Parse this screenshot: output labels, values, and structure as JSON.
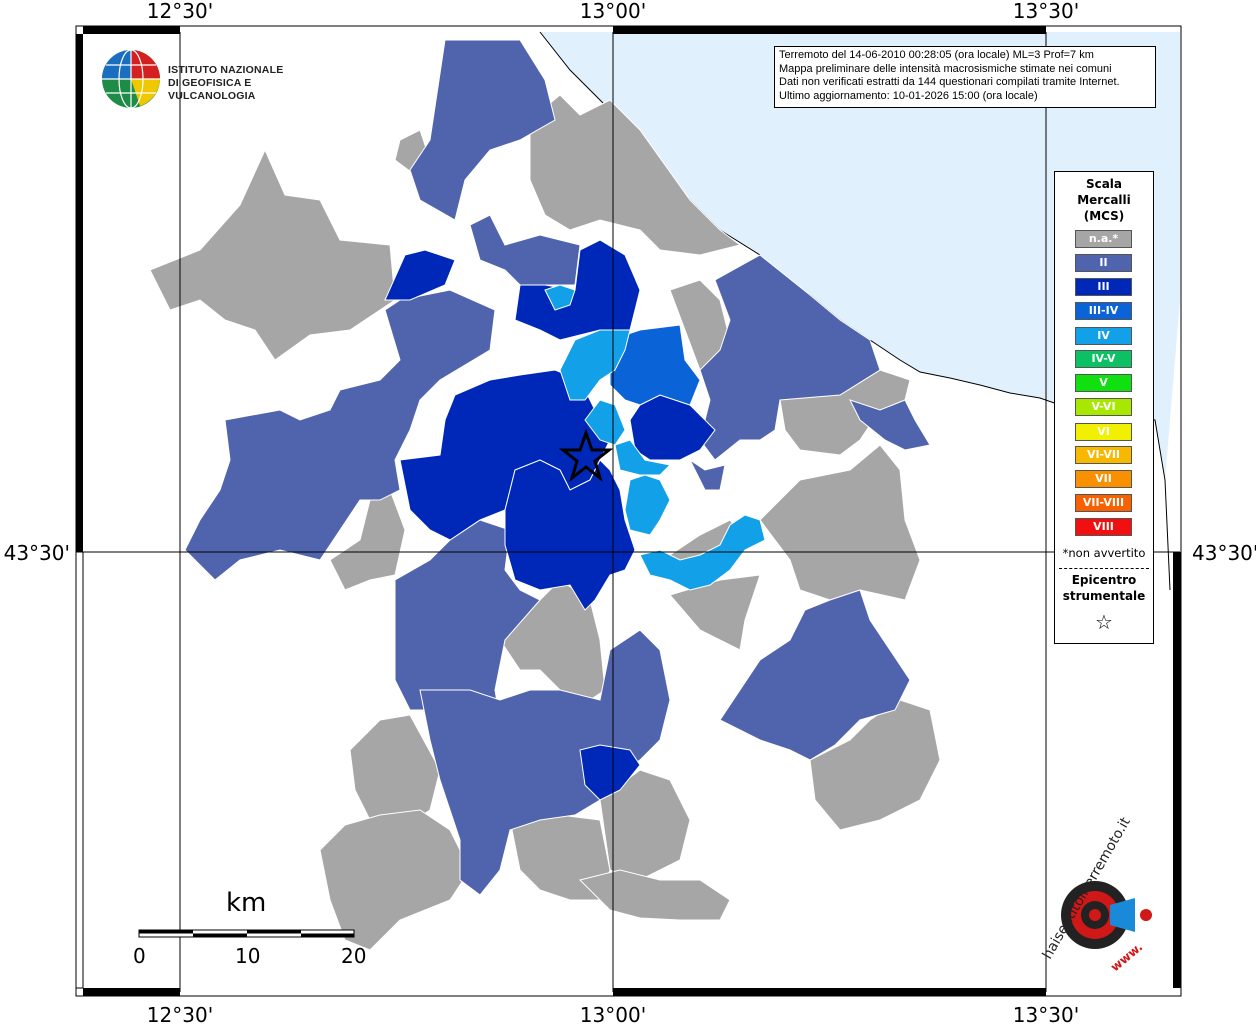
{
  "info": {
    "line1": "Terremoto del 14-06-2010 00:28:05 (ora locale) ML=3 Prof=7 km",
    "line2": "Mappa preliminare delle intensità macrosismiche stimate nei comuni",
    "line3": "Dati non verificati estratti da 144 questionari compilati tramite Internet.",
    "line4": "Ultimo aggiornamento: 10-01-2026 15:00 (ora locale)"
  },
  "logo": {
    "line1": "ISTITUTO NAZIONALE",
    "line2": "DI GEOFISICA E VULCANOLOGIA"
  },
  "axes": {
    "top": [
      "12°30'",
      "13°00'",
      "13°30'"
    ],
    "bottom": [
      "12°30'",
      "13°00'",
      "13°30'"
    ],
    "left": "43°30'",
    "right": "43°30'"
  },
  "legend": {
    "title_1": "Scala",
    "title_2": "Mercalli",
    "title_3": "(MCS)",
    "items": [
      {
        "label": "n.a.*",
        "color": "#a6a6a6"
      },
      {
        "label": "II",
        "color": "#5064ad"
      },
      {
        "label": "III",
        "color": "#0028b8"
      },
      {
        "label": "III-IV",
        "color": "#0a64d8"
      },
      {
        "label": "IV",
        "color": "#12a0e8"
      },
      {
        "label": "IV-V",
        "color": "#0cc064"
      },
      {
        "label": "V",
        "color": "#10e010"
      },
      {
        "label": "V-VI",
        "color": "#a8e800"
      },
      {
        "label": "VI",
        "color": "#f0f000"
      },
      {
        "label": "VI-VII",
        "color": "#f8b800"
      },
      {
        "label": "VII",
        "color": "#f89000"
      },
      {
        "label": "VII-VIII",
        "color": "#f86000"
      },
      {
        "label": "VIII",
        "color": "#f01010"
      }
    ],
    "note": "*non avvertito",
    "epi_1": "Epicentro",
    "epi_2": "strumentale",
    "epi_symbol": "☆"
  },
  "scale": {
    "title": "km",
    "ticks": [
      "0",
      "10",
      "20"
    ]
  },
  "badge": {
    "text": "haisentitoilterremoto.it",
    "url": "www."
  },
  "colors": {
    "sea": "#e0f0fc",
    "na": "#a6a6a6",
    "ii": "#5064ad",
    "iii": "#0028b8",
    "iii_iv": "#0a64d8",
    "iv": "#12a0e8"
  }
}
